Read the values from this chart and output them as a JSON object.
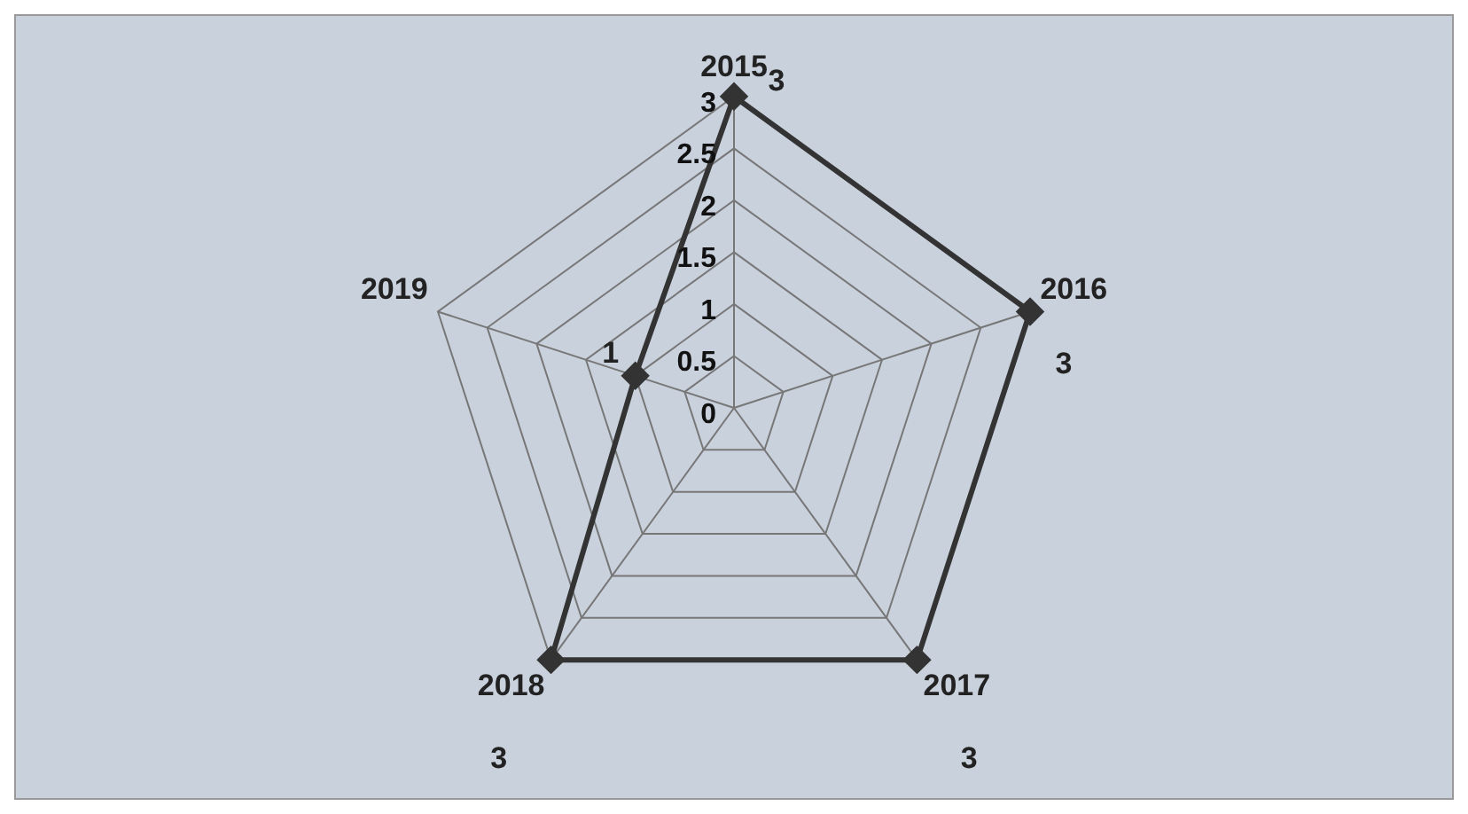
{
  "chart_data": {
    "type": "radar",
    "categories": [
      "2015",
      "2016",
      "2017",
      "2018",
      "2019"
    ],
    "series": [
      {
        "color": "#333333",
        "values": [
          3,
          3,
          3,
          3,
          1
        ]
      }
    ],
    "ylim": [
      0,
      3
    ],
    "yticks": [
      0,
      0.5,
      1,
      1.5,
      2,
      2.5,
      3
    ],
    "grid": true,
    "marker": "diamond",
    "data_labels": true,
    "legend": false
  }
}
